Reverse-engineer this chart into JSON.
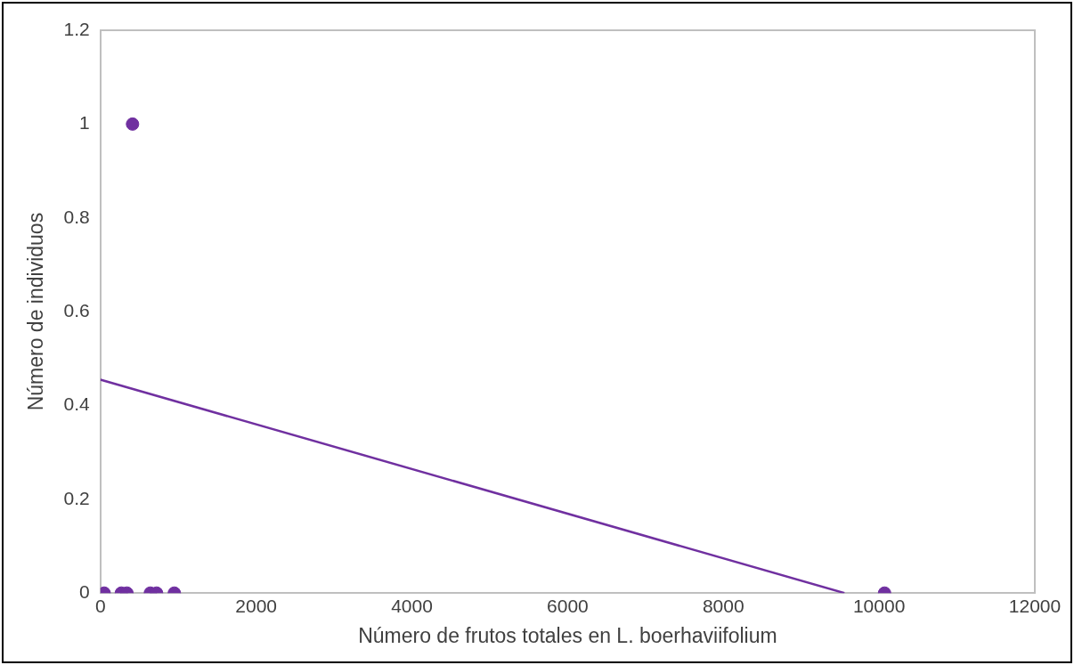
{
  "chart_data": {
    "type": "scatter",
    "xlabel": "Número de frutos totales en L. boerhaviifolium",
    "ylabel": "Número de individuos",
    "xlim": [
      0,
      12000
    ],
    "xticks": [
      0,
      2000,
      4000,
      6000,
      8000,
      10000,
      12000
    ],
    "ylim": [
      0,
      1.2
    ],
    "yticks": [
      0,
      0.2,
      0.4,
      0.6,
      0.8,
      1,
      1.2
    ],
    "grid": false,
    "legend": false,
    "marker": "circle",
    "series": [
      {
        "type": "scatter",
        "color": "#7030a0",
        "x": [
          48,
          268,
          340,
          412,
          641,
          721,
          949,
          10070
        ],
        "values": [
          0,
          0,
          0,
          1,
          0,
          0,
          0,
          0
        ]
      },
      {
        "type": "line",
        "color": "#7030a0",
        "marker": "none",
        "x": [
          0,
          9555
        ],
        "values": [
          0.455,
          0
        ]
      }
    ]
  }
}
